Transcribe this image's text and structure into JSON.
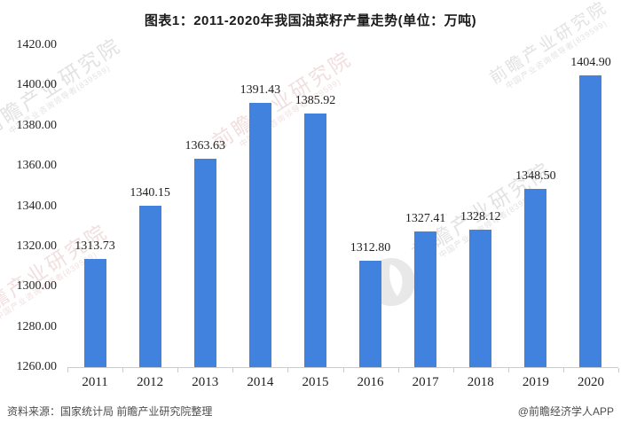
{
  "title": "图表1：2011-2020年我国油菜籽产量走势(单位：万吨)",
  "footer": {
    "source": "资料来源：国家统计局 前瞻产业研究院整理",
    "credit": "@前瞻经济学人APP"
  },
  "watermark": {
    "text": "前瞻产业研究院",
    "subtext": "中国产业咨询领导者(839599)",
    "logo": "qianzhan-circle-logo"
  },
  "colors": {
    "bar": "#4182DE",
    "axis": "#CCCCCC",
    "label": "#1F1F1F",
    "footer_text": "#4D4D4D"
  },
  "chart_data": {
    "type": "bar",
    "title": "图表1：2011-2020年我国油菜籽产量走势(单位：万吨)",
    "categories": [
      "2011",
      "2012",
      "2013",
      "2014",
      "2015",
      "2016",
      "2017",
      "2018",
      "2019",
      "2020"
    ],
    "values": [
      1313.73,
      1340.15,
      1363.63,
      1391.43,
      1385.92,
      1312.8,
      1327.41,
      1328.12,
      1348.5,
      1404.9
    ],
    "data_labels": [
      "1313.73",
      "1340.15",
      "1363.63",
      "1391.43",
      "1385.92",
      "1312.80",
      "1327.41",
      "1328.12",
      "1348.50",
      "1404.90"
    ],
    "xlabel": "",
    "ylabel": "",
    "unit": "万吨",
    "ylim": [
      1260,
      1420
    ],
    "y_ticks": [
      1260,
      1280,
      1300,
      1320,
      1340,
      1360,
      1380,
      1400,
      1420
    ],
    "grid": false,
    "legend": null
  }
}
